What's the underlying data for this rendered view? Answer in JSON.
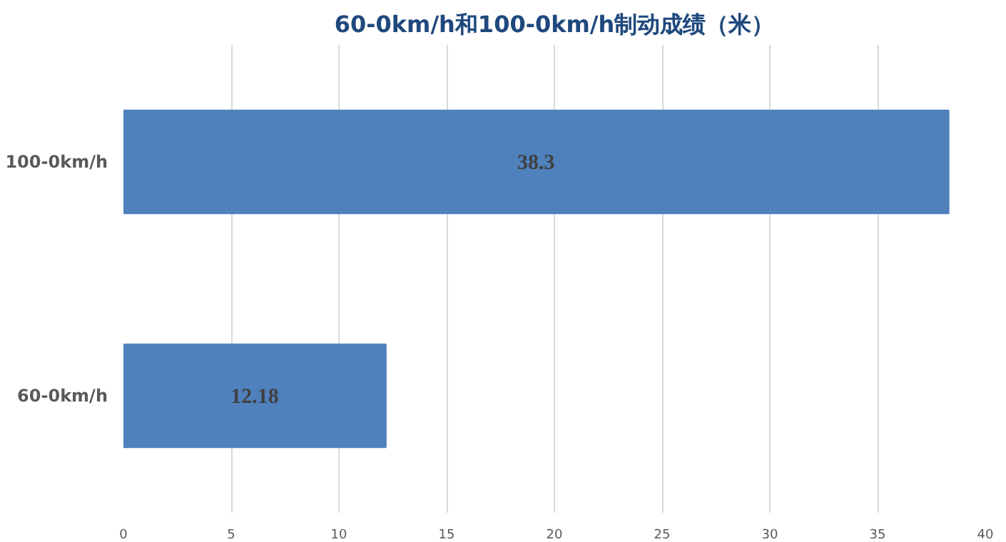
{
  "chart_data": {
    "type": "bar",
    "orientation": "horizontal",
    "title": "60-0km/h和100-0km/h制动成绩（米）",
    "categories": [
      "100-0km/h",
      "60-0km/h"
    ],
    "values": [
      38.3,
      12.18
    ],
    "color": "#4f81bd",
    "xlim": [
      0,
      40
    ],
    "xticks": [
      0,
      5,
      10,
      15,
      20,
      25,
      30,
      35,
      40
    ],
    "grid": "x",
    "data_labels": true
  }
}
